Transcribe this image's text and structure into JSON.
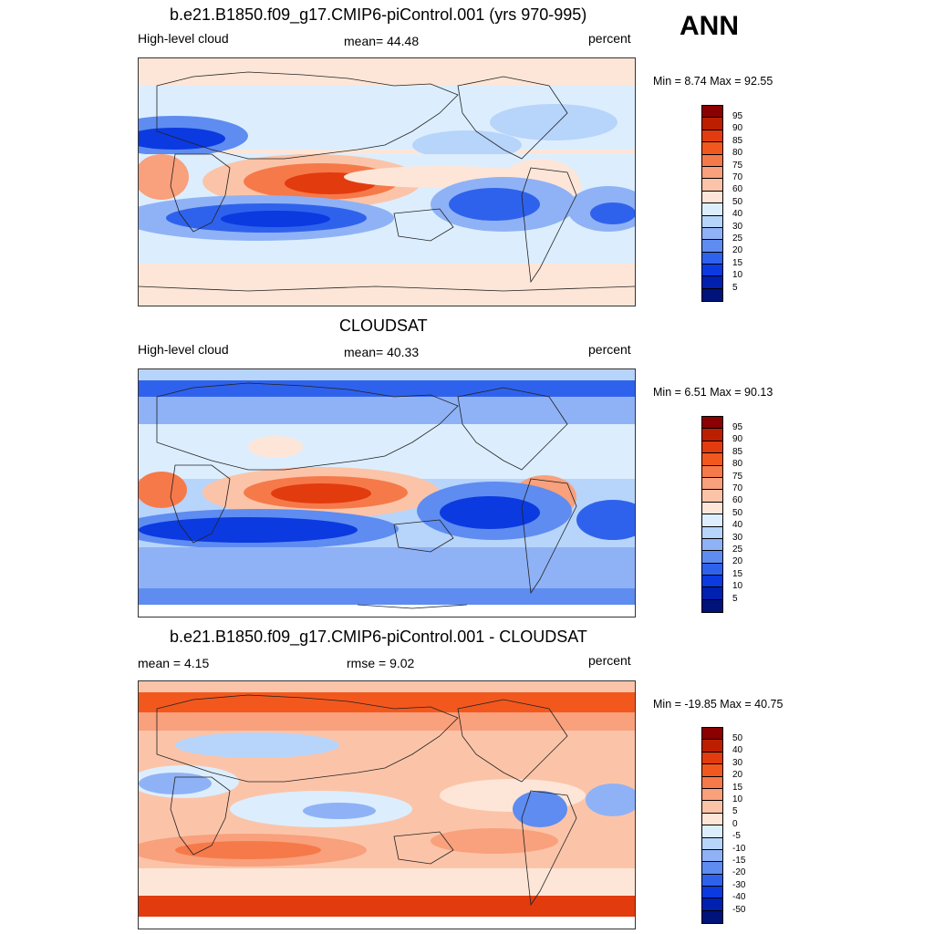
{
  "season": "ANN",
  "panels": [
    {
      "title": "b.e21.B1850.f09_g17.CMIP6-piControl.001 (yrs 970-995)",
      "left_label": "High-level cloud",
      "center_label": "mean=  44.48",
      "right_label": "percent",
      "minmax": "Min =   8.74 Max =  92.55",
      "colorbar_labels": [
        "95",
        "90",
        "85",
        "80",
        "75",
        "70",
        "60",
        "50",
        "40",
        "30",
        "25",
        "20",
        "15",
        "10",
        "5"
      ]
    },
    {
      "title": "CLOUDSAT",
      "left_label": "High-level cloud",
      "center_label": "mean=  40.33",
      "right_label": "percent",
      "minmax": "Min =   6.51 Max =  90.13",
      "colorbar_labels": [
        "95",
        "90",
        "85",
        "80",
        "75",
        "70",
        "60",
        "50",
        "40",
        "30",
        "25",
        "20",
        "15",
        "10",
        "5"
      ]
    },
    {
      "title": "b.e21.B1850.f09_g17.CMIP6-piControl.001 - CLOUDSAT",
      "left_label": "mean =   4.15",
      "center_label": "rmse =   9.02",
      "right_label": "percent",
      "minmax": "Min = -19.85 Max =  40.75",
      "colorbar_labels": [
        "50",
        "40",
        "30",
        "20",
        "15",
        "10",
        "5",
        "0",
        "-5",
        "-10",
        "-15",
        "-20",
        "-30",
        "-40",
        "-50"
      ]
    }
  ],
  "colors": {
    "scale": [
      "#8b0000",
      "#bb1f00",
      "#e23b0e",
      "#f2581e",
      "#f6794a",
      "#f9a07c",
      "#fbc4a8",
      "#fde6d8",
      "#ffffff",
      "#dceefe",
      "#b7d4fb",
      "#8fb2f6",
      "#5e8cf1",
      "#2f62ec",
      "#0b3ae0",
      "#0020b0",
      "#00137a"
    ],
    "cbar_segments": [
      "#8b0000",
      "#bb1f00",
      "#e23b0e",
      "#f2581e",
      "#f6794a",
      "#f9a07c",
      "#fbc4a8",
      "#fde6d8",
      "#dceefe",
      "#b7d4fb",
      "#8fb2f6",
      "#5e8cf1",
      "#2f62ec",
      "#0b3ae0",
      "#0020b0",
      "#00137a"
    ],
    "coastline": "#222222"
  }
}
